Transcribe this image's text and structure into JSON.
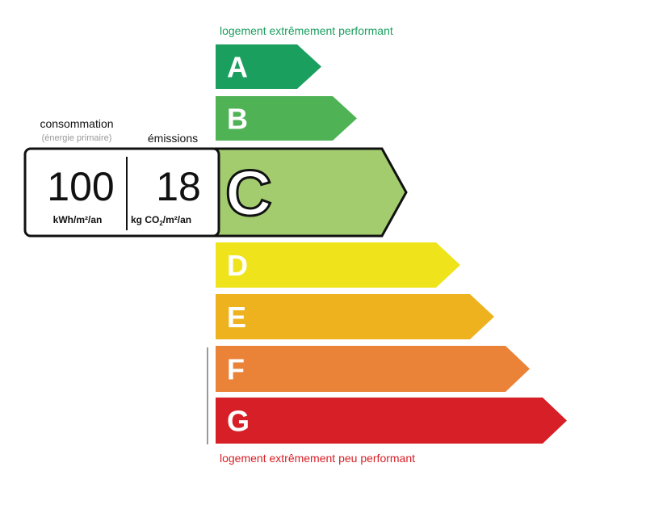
{
  "top_label": "logement extrêmement performant",
  "bottom_label": "logement extrêmement peu performant",
  "consumption": {
    "title": "consommation",
    "subtitle": "(énergie primaire)",
    "value": "100",
    "unit": "kWh/m²/an"
  },
  "emissions": {
    "title": "émissions",
    "value": "18",
    "unit_prefix": "kg CO",
    "unit_sub": "2",
    "unit_suffix": "/m²/an"
  },
  "selected_class": "C",
  "classes": [
    {
      "letter": "A",
      "color": "#1a9f5f"
    },
    {
      "letter": "B",
      "color": "#4fb355"
    },
    {
      "letter": "C",
      "color": "#a2cc6e"
    },
    {
      "letter": "D",
      "color": "#efe31c"
    },
    {
      "letter": "E",
      "color": "#eeb21f"
    },
    {
      "letter": "F",
      "color": "#ea8238"
    },
    {
      "letter": "G",
      "color": "#d61f26"
    }
  ],
  "colors": {
    "top_label": "#1a9f5f",
    "bottom_label": "#d61f26"
  }
}
